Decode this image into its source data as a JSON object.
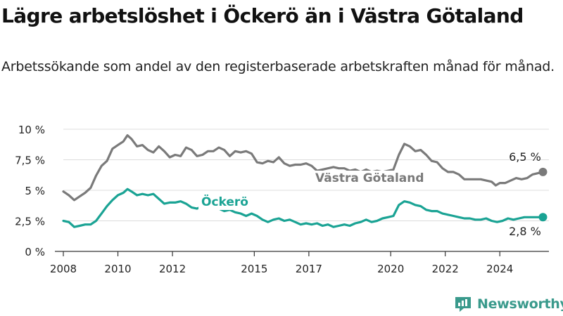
{
  "title": "Lägre arbetslöshet i Öckerö än i Västra Götaland",
  "subtitle": "Arbetssökande som andel av den registerbaserade arbetskraften månad för månad.",
  "brand": "Newsworthy",
  "colors": {
    "vg": "#7a7a7a",
    "ockero": "#1aa394",
    "grid": "#dcdcdc",
    "axis": "#333333"
  },
  "chart_data": {
    "type": "line",
    "xlim": [
      2008,
      2025.8
    ],
    "ylim": [
      0,
      10
    ],
    "x_ticks": [
      2008,
      2010,
      2012,
      2015,
      2017,
      2020,
      2022,
      2024
    ],
    "y_ticks": [
      {
        "value": 0,
        "label": "0 %"
      },
      {
        "value": 2.5,
        "label": "2,5 %"
      },
      {
        "value": 5,
        "label": "5 %"
      },
      {
        "value": 7.5,
        "label": "7,5 %"
      },
      {
        "value": 10,
        "label": "10 %"
      }
    ],
    "grid": true,
    "series": [
      {
        "name": "Västra Götaland",
        "end_label": "6,5 %",
        "points": [
          [
            2008.0,
            4.9
          ],
          [
            2008.2,
            4.6
          ],
          [
            2008.4,
            4.2
          ],
          [
            2008.6,
            4.5
          ],
          [
            2008.8,
            4.8
          ],
          [
            2009.0,
            5.2
          ],
          [
            2009.2,
            6.2
          ],
          [
            2009.4,
            7.0
          ],
          [
            2009.6,
            7.4
          ],
          [
            2009.8,
            8.4
          ],
          [
            2010.0,
            8.7
          ],
          [
            2010.2,
            9.0
          ],
          [
            2010.35,
            9.5
          ],
          [
            2010.5,
            9.2
          ],
          [
            2010.7,
            8.6
          ],
          [
            2010.9,
            8.7
          ],
          [
            2011.1,
            8.3
          ],
          [
            2011.3,
            8.1
          ],
          [
            2011.5,
            8.6
          ],
          [
            2011.7,
            8.2
          ],
          [
            2011.9,
            7.7
          ],
          [
            2012.1,
            7.9
          ],
          [
            2012.3,
            7.8
          ],
          [
            2012.5,
            8.5
          ],
          [
            2012.7,
            8.3
          ],
          [
            2012.9,
            7.8
          ],
          [
            2013.1,
            7.9
          ],
          [
            2013.3,
            8.2
          ],
          [
            2013.5,
            8.2
          ],
          [
            2013.7,
            8.5
          ],
          [
            2013.9,
            8.3
          ],
          [
            2014.1,
            7.8
          ],
          [
            2014.3,
            8.2
          ],
          [
            2014.5,
            8.1
          ],
          [
            2014.7,
            8.2
          ],
          [
            2014.9,
            8.0
          ],
          [
            2015.1,
            7.3
          ],
          [
            2015.3,
            7.2
          ],
          [
            2015.5,
            7.4
          ],
          [
            2015.7,
            7.3
          ],
          [
            2015.9,
            7.7
          ],
          [
            2016.1,
            7.2
          ],
          [
            2016.3,
            7.0
          ],
          [
            2016.5,
            7.1
          ],
          [
            2016.7,
            7.1
          ],
          [
            2016.9,
            7.2
          ],
          [
            2017.1,
            7.0
          ],
          [
            2017.3,
            6.6
          ],
          [
            2017.5,
            6.7
          ],
          [
            2017.7,
            6.8
          ],
          [
            2017.9,
            6.9
          ],
          [
            2018.1,
            6.8
          ],
          [
            2018.3,
            6.8
          ],
          [
            2018.5,
            6.6
          ],
          [
            2018.7,
            6.7
          ],
          [
            2018.9,
            6.5
          ],
          [
            2019.1,
            6.7
          ],
          [
            2019.3,
            6.5
          ],
          [
            2019.5,
            6.6
          ],
          [
            2019.7,
            6.5
          ],
          [
            2019.9,
            6.6
          ],
          [
            2020.1,
            6.7
          ],
          [
            2020.3,
            7.9
          ],
          [
            2020.5,
            8.8
          ],
          [
            2020.7,
            8.6
          ],
          [
            2020.9,
            8.2
          ],
          [
            2021.1,
            8.3
          ],
          [
            2021.3,
            7.9
          ],
          [
            2021.5,
            7.4
          ],
          [
            2021.7,
            7.3
          ],
          [
            2021.9,
            6.8
          ],
          [
            2022.1,
            6.5
          ],
          [
            2022.3,
            6.5
          ],
          [
            2022.5,
            6.3
          ],
          [
            2022.7,
            5.9
          ],
          [
            2022.9,
            5.9
          ],
          [
            2023.1,
            5.9
          ],
          [
            2023.3,
            5.9
          ],
          [
            2023.5,
            5.8
          ],
          [
            2023.7,
            5.7
          ],
          [
            2023.85,
            5.4
          ],
          [
            2024.0,
            5.6
          ],
          [
            2024.2,
            5.6
          ],
          [
            2024.4,
            5.8
          ],
          [
            2024.6,
            6.0
          ],
          [
            2024.8,
            5.9
          ],
          [
            2025.0,
            6.0
          ],
          [
            2025.2,
            6.3
          ],
          [
            2025.4,
            6.4
          ],
          [
            2025.58,
            6.5
          ]
        ]
      },
      {
        "name": "Öckerö",
        "end_label": "2,8 %",
        "points": [
          [
            2008.0,
            2.5
          ],
          [
            2008.2,
            2.4
          ],
          [
            2008.4,
            2.0
          ],
          [
            2008.6,
            2.1
          ],
          [
            2008.8,
            2.2
          ],
          [
            2009.0,
            2.2
          ],
          [
            2009.2,
            2.5
          ],
          [
            2009.4,
            3.1
          ],
          [
            2009.6,
            3.7
          ],
          [
            2009.8,
            4.2
          ],
          [
            2010.0,
            4.6
          ],
          [
            2010.2,
            4.8
          ],
          [
            2010.35,
            5.1
          ],
          [
            2010.5,
            4.9
          ],
          [
            2010.7,
            4.6
          ],
          [
            2010.9,
            4.7
          ],
          [
            2011.1,
            4.6
          ],
          [
            2011.3,
            4.7
          ],
          [
            2011.5,
            4.3
          ],
          [
            2011.7,
            3.9
          ],
          [
            2011.9,
            4.0
          ],
          [
            2012.1,
            4.0
          ],
          [
            2012.3,
            4.1
          ],
          [
            2012.5,
            3.9
          ],
          [
            2012.7,
            3.6
          ],
          [
            2012.9,
            3.5
          ],
          [
            2013.1,
            3.7
          ],
          [
            2013.3,
            3.8
          ],
          [
            2013.5,
            3.6
          ],
          [
            2013.7,
            3.5
          ],
          [
            2013.9,
            3.3
          ],
          [
            2014.1,
            3.4
          ],
          [
            2014.3,
            3.2
          ],
          [
            2014.5,
            3.1
          ],
          [
            2014.7,
            2.9
          ],
          [
            2014.9,
            3.1
          ],
          [
            2015.1,
            2.9
          ],
          [
            2015.3,
            2.6
          ],
          [
            2015.5,
            2.4
          ],
          [
            2015.7,
            2.6
          ],
          [
            2015.9,
            2.7
          ],
          [
            2016.1,
            2.5
          ],
          [
            2016.3,
            2.6
          ],
          [
            2016.5,
            2.4
          ],
          [
            2016.7,
            2.2
          ],
          [
            2016.9,
            2.3
          ],
          [
            2017.1,
            2.2
          ],
          [
            2017.3,
            2.3
          ],
          [
            2017.5,
            2.1
          ],
          [
            2017.7,
            2.2
          ],
          [
            2017.9,
            2.0
          ],
          [
            2018.1,
            2.1
          ],
          [
            2018.3,
            2.2
          ],
          [
            2018.5,
            2.1
          ],
          [
            2018.7,
            2.3
          ],
          [
            2018.9,
            2.4
          ],
          [
            2019.1,
            2.6
          ],
          [
            2019.3,
            2.4
          ],
          [
            2019.5,
            2.5
          ],
          [
            2019.7,
            2.7
          ],
          [
            2019.9,
            2.8
          ],
          [
            2020.1,
            2.9
          ],
          [
            2020.3,
            3.8
          ],
          [
            2020.5,
            4.1
          ],
          [
            2020.7,
            4.0
          ],
          [
            2020.9,
            3.8
          ],
          [
            2021.1,
            3.7
          ],
          [
            2021.3,
            3.4
          ],
          [
            2021.5,
            3.3
          ],
          [
            2021.7,
            3.3
          ],
          [
            2021.9,
            3.1
          ],
          [
            2022.1,
            3.0
          ],
          [
            2022.3,
            2.9
          ],
          [
            2022.5,
            2.8
          ],
          [
            2022.7,
            2.7
          ],
          [
            2022.9,
            2.7
          ],
          [
            2023.1,
            2.6
          ],
          [
            2023.3,
            2.6
          ],
          [
            2023.5,
            2.7
          ],
          [
            2023.7,
            2.5
          ],
          [
            2023.9,
            2.4
          ],
          [
            2024.1,
            2.5
          ],
          [
            2024.3,
            2.7
          ],
          [
            2024.5,
            2.6
          ],
          [
            2024.7,
            2.7
          ],
          [
            2024.9,
            2.8
          ],
          [
            2025.1,
            2.8
          ],
          [
            2025.3,
            2.8
          ],
          [
            2025.58,
            2.8
          ]
        ]
      }
    ]
  }
}
